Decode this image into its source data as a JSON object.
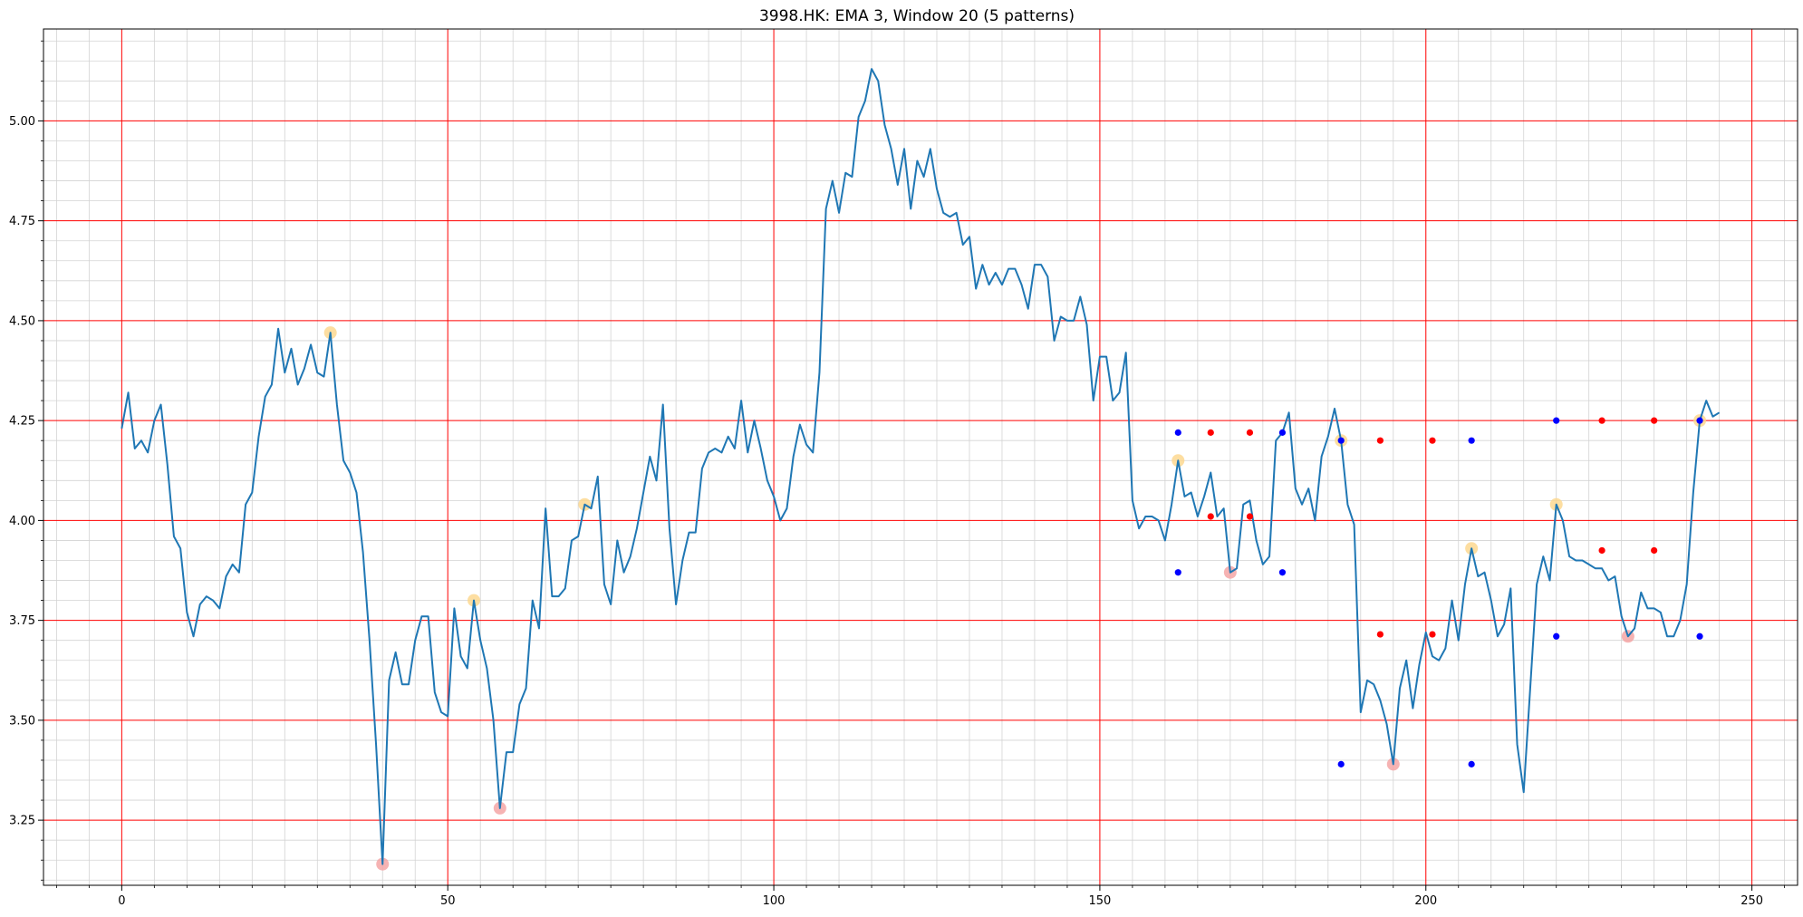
{
  "chart_data": {
    "type": "line",
    "title": "3998.HK: EMA 3, Window 20 (5 patterns)",
    "xlabel": "",
    "ylabel": "",
    "xlim": [
      -12,
      257
    ],
    "ylim": [
      3.087,
      5.23
    ],
    "x_ticks": [
      0,
      50,
      100,
      150,
      200,
      250
    ],
    "y_ticks": [
      3.25,
      3.5,
      3.75,
      4.0,
      4.25,
      4.5,
      4.75,
      5.0
    ],
    "x_tick_labels": [
      "0",
      "50",
      "100",
      "150",
      "200",
      "250"
    ],
    "y_tick_labels": [
      "3.25",
      "3.50",
      "3.75",
      "4.00",
      "4.25",
      "4.50",
      "4.75",
      "5.00"
    ],
    "grid": true,
    "colors": {
      "line": "#1f77b4",
      "major_grid": "#ff0000",
      "minor_grid": "#d3d3d3",
      "peak_marker": "#fdd68a",
      "trough_marker": "#f4a0a0",
      "blue_dot": "#0000ff",
      "red_dot": "#ff0000"
    },
    "series": [
      {
        "values": [
          4.23,
          4.32,
          4.18,
          4.2,
          4.17,
          4.25,
          4.29,
          4.14,
          3.96,
          3.93,
          3.77,
          3.71,
          3.79,
          3.81,
          3.8,
          3.78,
          3.86,
          3.89,
          3.87,
          4.04,
          4.07,
          4.21,
          4.31,
          4.34,
          4.48,
          4.37,
          4.43,
          4.34,
          4.38,
          4.44,
          4.37,
          4.36,
          4.47,
          4.29,
          4.15,
          4.12,
          4.07,
          3.92,
          3.7,
          3.44,
          3.14,
          3.6,
          3.67,
          3.59,
          3.59,
          3.7,
          3.76,
          3.76,
          3.57,
          3.52,
          3.51,
          3.78,
          3.66,
          3.63,
          3.8,
          3.7,
          3.63,
          3.5,
          3.28,
          3.42,
          3.42,
          3.54,
          3.58,
          3.8,
          3.73,
          4.03,
          3.81,
          3.81,
          3.83,
          3.95,
          3.96,
          4.04,
          4.03,
          4.11,
          3.84,
          3.79,
          3.95,
          3.87,
          3.91,
          3.98,
          4.07,
          4.16,
          4.1,
          4.29,
          3.98,
          3.79,
          3.9,
          3.97,
          3.97,
          4.13,
          4.17,
          4.18,
          4.17,
          4.21,
          4.18,
          4.3,
          4.17,
          4.25,
          4.18,
          4.1,
          4.06,
          4.0,
          4.03,
          4.16,
          4.24,
          4.19,
          4.17,
          4.37,
          4.78,
          4.85,
          4.77,
          4.87,
          4.86,
          5.01,
          5.05,
          5.13,
          5.1,
          4.99,
          4.93,
          4.84,
          4.93,
          4.78,
          4.9,
          4.86,
          4.93,
          4.83,
          4.77,
          4.76,
          4.77,
          4.69,
          4.71,
          4.58,
          4.64,
          4.59,
          4.62,
          4.59,
          4.63,
          4.63,
          4.59,
          4.53,
          4.64,
          4.64,
          4.61,
          4.45,
          4.51,
          4.5,
          4.5,
          4.56,
          4.49,
          4.3,
          4.41,
          4.41,
          4.3,
          4.32,
          4.42,
          4.05,
          3.98,
          4.01,
          4.01,
          4.0,
          3.95,
          4.04,
          4.15,
          4.06,
          4.07,
          4.01,
          4.06,
          4.12,
          4.01,
          4.03,
          3.87,
          3.88,
          4.04,
          4.05,
          3.95,
          3.89,
          3.91,
          4.2,
          4.22,
          4.27,
          4.08,
          4.04,
          4.08,
          4.0,
          4.16,
          4.21,
          4.28,
          4.2,
          4.04,
          3.99,
          3.52,
          3.6,
          3.59,
          3.55,
          3.49,
          3.39,
          3.58,
          3.65,
          3.53,
          3.64,
          3.72,
          3.66,
          3.65,
          3.68,
          3.8,
          3.7,
          3.84,
          3.93,
          3.86,
          3.87,
          3.8,
          3.71,
          3.74,
          3.83,
          3.44,
          3.32,
          3.58,
          3.84,
          3.91,
          3.85,
          4.04,
          4.0,
          3.91,
          3.9,
          3.9,
          3.89,
          3.88,
          3.88,
          3.85,
          3.86,
          3.76,
          3.71,
          3.73,
          3.82,
          3.78,
          3.78,
          3.77,
          3.71,
          3.71,
          3.75,
          3.84,
          4.07,
          4.25,
          4.3,
          4.26,
          4.27
        ]
      }
    ],
    "peak_markers": [
      [
        32,
        4.47
      ],
      [
        54,
        3.8
      ],
      [
        71,
        4.04
      ],
      [
        162,
        4.15
      ],
      [
        187,
        4.2
      ],
      [
        207,
        3.93
      ],
      [
        220,
        4.04
      ],
      [
        242,
        4.25
      ]
    ],
    "trough_markers": [
      [
        40,
        3.14
      ],
      [
        58,
        3.28
      ],
      [
        170,
        3.87
      ],
      [
        195,
        3.39
      ],
      [
        231,
        3.71
      ]
    ],
    "blue_dots": [
      [
        162,
        4.22
      ],
      [
        162,
        3.87
      ],
      [
        178,
        4.22
      ],
      [
        178,
        3.87
      ],
      [
        187,
        4.2
      ],
      [
        187,
        3.39
      ],
      [
        207,
        4.2
      ],
      [
        207,
        3.39
      ],
      [
        220,
        4.25
      ],
      [
        220,
        3.71
      ],
      [
        242,
        4.25
      ],
      [
        242,
        3.71
      ]
    ],
    "red_dots": [
      [
        167,
        4.22
      ],
      [
        167,
        4.01
      ],
      [
        173,
        4.22
      ],
      [
        173,
        4.01
      ],
      [
        193,
        4.2
      ],
      [
        193,
        3.715
      ],
      [
        201,
        4.2
      ],
      [
        201,
        3.715
      ],
      [
        227,
        4.25
      ],
      [
        227,
        3.925
      ],
      [
        235,
        4.25
      ],
      [
        235,
        3.925
      ]
    ]
  }
}
